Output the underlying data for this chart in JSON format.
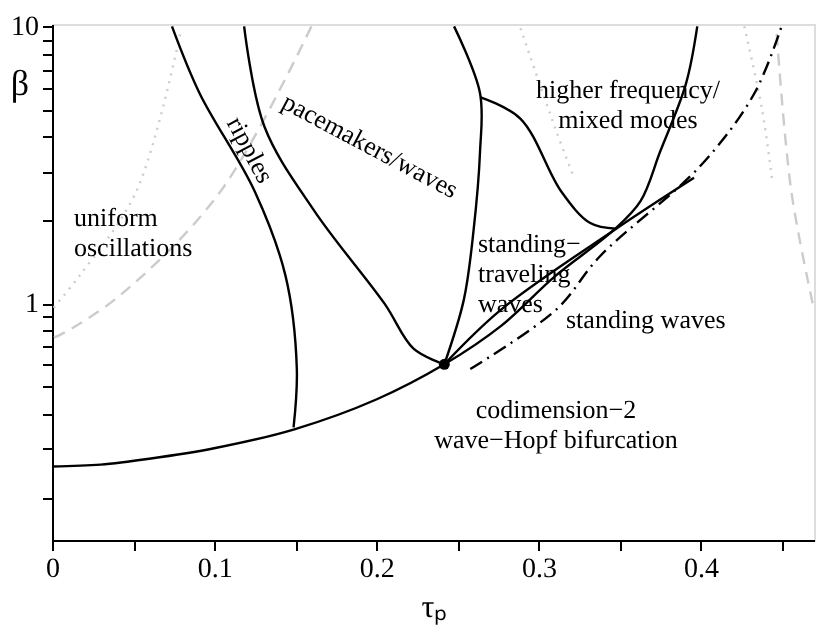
{
  "chart_data": {
    "type": "line",
    "xlabel": "τₚ",
    "ylabel": "β",
    "log": "y",
    "grid": false,
    "marker": "none",
    "xlim": [
      0,
      0.47
    ],
    "ylim": [
      0.14,
      10.2
    ],
    "xticks": [
      0,
      {
        "value": 0.05,
        "label": null
      },
      0.1,
      {
        "value": 0.15,
        "label": null
      },
      0.2,
      {
        "value": 0.25,
        "label": null
      },
      0.3,
      {
        "value": 0.35,
        "label": null
      },
      0.4,
      {
        "value": 0.45,
        "label": null
      }
    ],
    "yticks": [
      {
        "value": 0.2,
        "label": null
      },
      {
        "value": 0.3,
        "label": null
      },
      {
        "value": 0.4,
        "label": null
      },
      {
        "value": 0.5,
        "label": null
      },
      {
        "value": 0.6,
        "label": null
      },
      {
        "value": 0.7,
        "label": null
      },
      {
        "value": 0.8,
        "label": null
      },
      {
        "value": 0.9,
        "label": null
      },
      1,
      {
        "value": 2,
        "label": null
      },
      {
        "value": 3,
        "label": null
      },
      {
        "value": 4,
        "label": null
      },
      {
        "value": 5,
        "label": null
      },
      {
        "value": 6,
        "label": null
      },
      {
        "value": 7,
        "label": null
      },
      {
        "value": 8,
        "label": null
      },
      {
        "value": 9,
        "label": null
      },
      10
    ],
    "series": [
      {
        "color": "#cccccc",
        "line_style": "dotted",
        "x": [
          0.079,
          0.052,
          0.017,
          0.0
        ],
        "values": [
          9.35,
          2.54,
          1.26,
          0.95
        ]
      },
      {
        "color": "#cccccc",
        "line_style": "dashed",
        "x": [
          0.16,
          0.104,
          0.042,
          0.005,
          0.0
        ],
        "values": [
          10.0,
          2.54,
          1.07,
          0.77,
          0.75
        ]
      },
      {
        "color": "#cccccc",
        "line_style": "dotted",
        "x": [
          0.289,
          0.31,
          0.322
        ],
        "values": [
          9.84,
          4.35,
          2.84
        ]
      },
      {
        "color": "#cccccc",
        "line_style": "dotted",
        "x": [
          0.427,
          0.438,
          0.444
        ],
        "values": [
          10.0,
          5.0,
          2.84
        ]
      },
      {
        "color": "#cccccc",
        "line_style": "dashed",
        "x": [
          0.447,
          0.456,
          0.47
        ],
        "values": [
          9.4,
          2.54,
          0.95
        ]
      },
      {
        "color": "#000000",
        "line_style": "solid",
        "x": [
          0.0,
          0.03,
          0.06,
          0.1,
          0.15,
          0.2,
          0.242,
          0.277,
          0.31,
          0.346,
          0.363,
          0.375,
          0.391,
          0.398
        ],
        "values": [
          0.258,
          0.262,
          0.275,
          0.3,
          0.352,
          0.45,
          0.603,
          0.83,
          1.25,
          1.83,
          2.34,
          3.52,
          6.2,
          10.0
        ]
      },
      {
        "color": "#000000",
        "line_style": "dashdot",
        "x": [
          0.258,
          0.311,
          0.338,
          0.4,
          0.433,
          0.45
        ],
        "values": [
          0.58,
          0.95,
          1.48,
          3.14,
          5.7,
          10.0
        ]
      },
      {
        "color": "#000000",
        "line_style": "solid",
        "x": [
          0.242,
          0.277,
          0.348,
          0.396
        ],
        "values": [
          0.603,
          0.95,
          1.86,
          2.84
        ]
      },
      {
        "color": "#000000",
        "line_style": "solid",
        "x": [
          0.264,
          0.289,
          0.314,
          0.332,
          0.348
        ],
        "values": [
          5.56,
          4.64,
          2.54,
          1.95,
          1.86
        ]
      },
      {
        "color": "#000000",
        "line_style": "solid",
        "x": [
          0.248,
          0.264,
          0.264,
          0.26,
          0.254,
          0.242
        ],
        "values": [
          10.0,
          5.74,
          3.52,
          1.83,
          1.03,
          0.603
        ]
      },
      {
        "color": "#000000",
        "line_style": "solid",
        "x": [
          0.1185,
          0.131,
          0.162,
          0.205,
          0.223,
          0.242
        ],
        "values": [
          10.0,
          4.35,
          2.15,
          1.0,
          0.687,
          0.603
        ]
      },
      {
        "color": "#000000",
        "line_style": "solid",
        "x": [
          0.074,
          0.091,
          0.125,
          0.144,
          0.151,
          0.149
        ],
        "values": [
          10.0,
          5.74,
          2.54,
          1.26,
          0.583,
          0.357
        ]
      },
      {
        "type": "scatter",
        "color": "#000000",
        "marker": "circle",
        "x": [
          0.242
        ],
        "values": [
          0.603
        ]
      }
    ],
    "annotations": [
      "uniform\noscillations",
      "ripples",
      "pacemakers/waves",
      "higher frequency/\nmixed modes",
      "standing−\ntraveling\nwaves",
      "standing waves",
      "codimension−2\nwave−Hopf bifurcation"
    ]
  }
}
